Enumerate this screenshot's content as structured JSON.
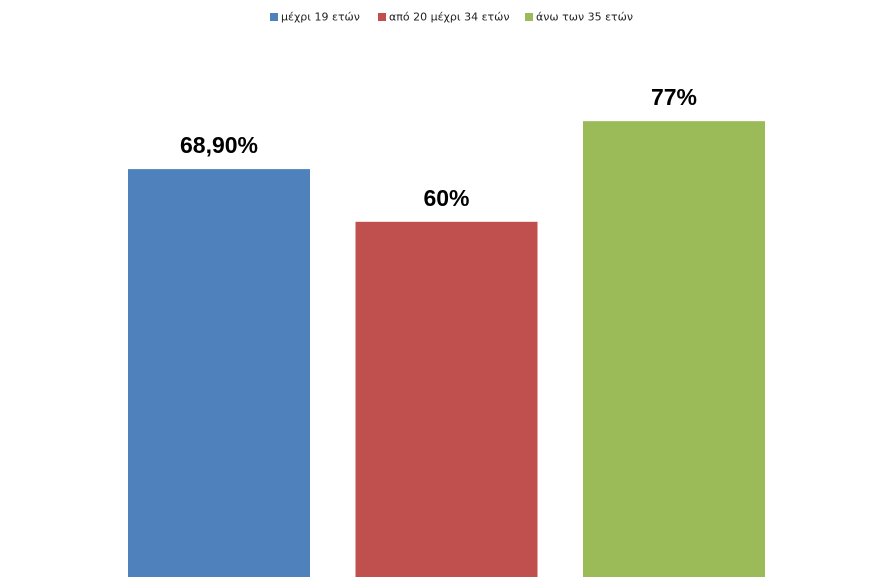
{
  "chart_data": {
    "type": "bar",
    "categories": [
      null
    ],
    "series": [
      {
        "name": "μέχρι 19 ετών",
        "color": "#4f81bd",
        "values": [
          68.9
        ],
        "value_labels": [
          "68,90%"
        ]
      },
      {
        "name": "από 20 μέχρι 34 ετών",
        "color": "#c0504d",
        "values": [
          60
        ],
        "value_labels": [
          "60%"
        ]
      },
      {
        "name": "άνω των 35 ετών",
        "color": "#9bbb59",
        "values": [
          77
        ],
        "value_labels": [
          "77%"
        ]
      }
    ],
    "legend": "top"
  }
}
